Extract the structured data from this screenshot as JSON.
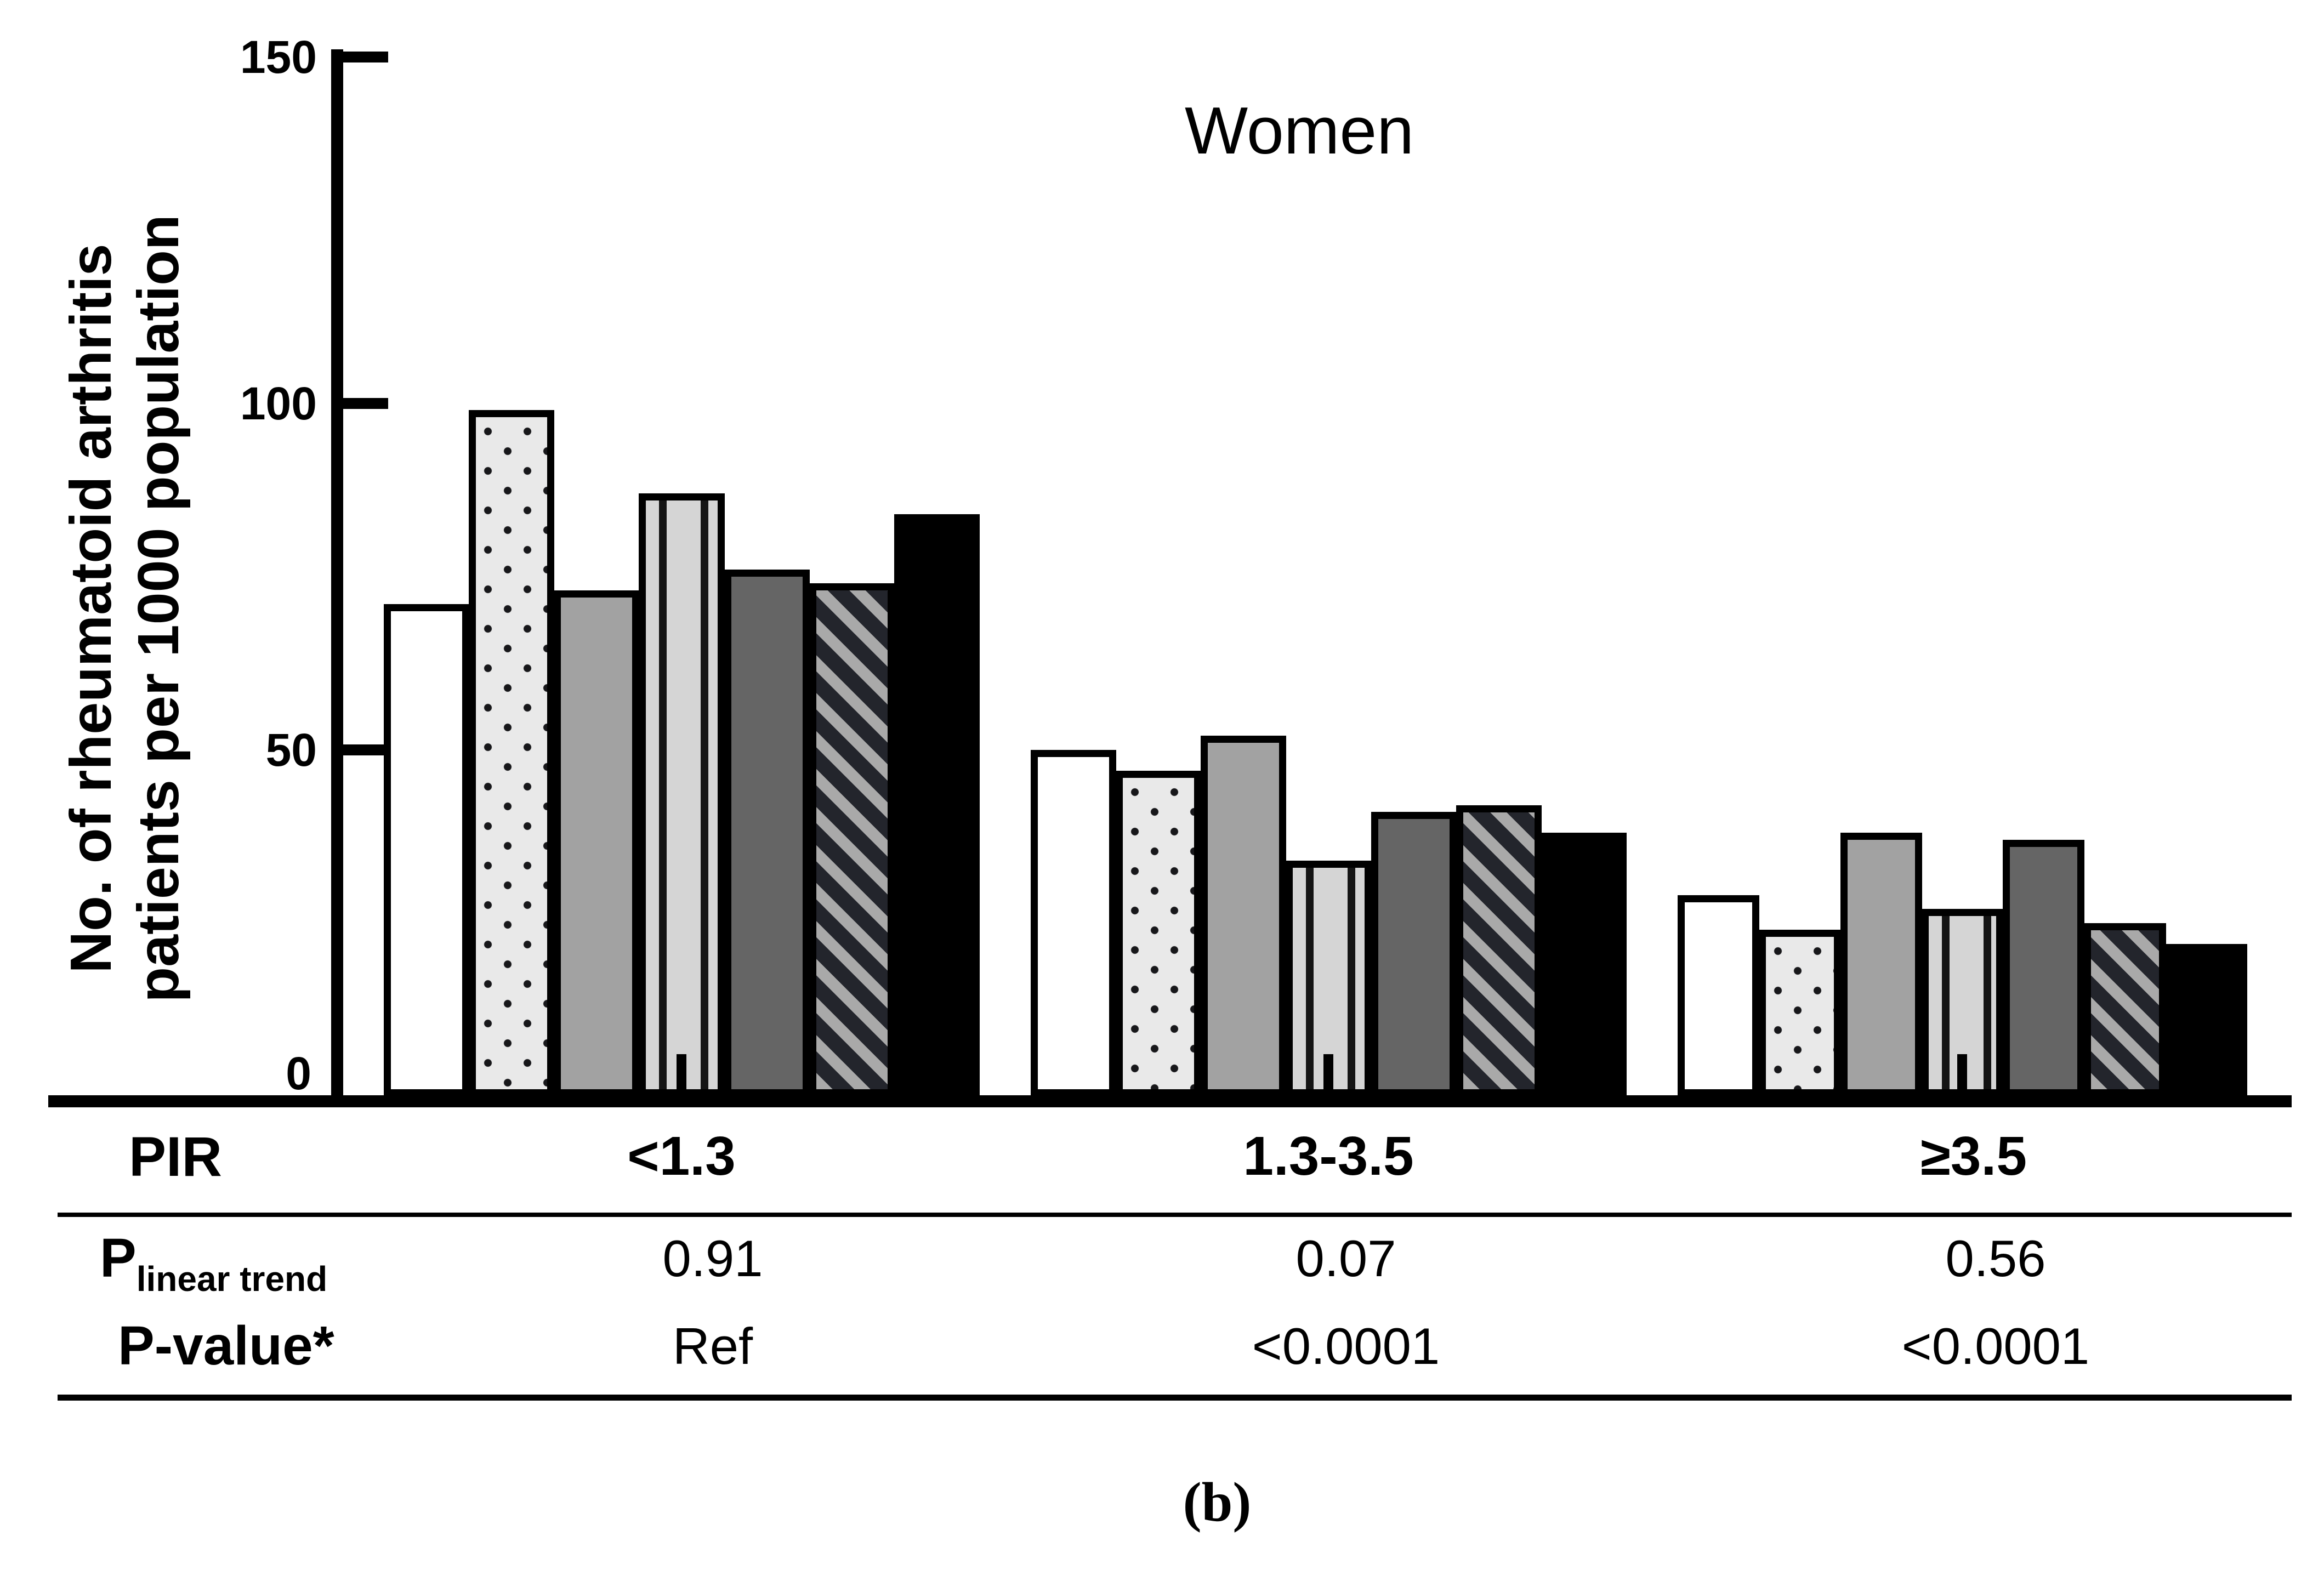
{
  "figure": {
    "title": "Women",
    "panel_label": "(b)"
  },
  "y_axis": {
    "label": "No. of rheumatoid arthritis\npatients per 1000 population",
    "tick_labels": [
      "150",
      "100",
      "50",
      "0"
    ]
  },
  "pir_table": {
    "row_pir_label": "PIR",
    "row_ptrend_label_main": "P",
    "row_ptrend_label_sub": "linear trend",
    "row_pvalue_label": "P-value*",
    "categories": [
      "<1.3",
      "1.3-3.5",
      "≥3.5"
    ],
    "p_linear_trend": [
      "0.91",
      "0.07",
      "0.56"
    ],
    "p_values": [
      "Ref",
      "<0.0001",
      "<0.0001"
    ]
  },
  "chart_data": {
    "type": "bar",
    "title": "Women",
    "xlabel": "PIR",
    "ylabel": "No. of rheumatoid arthritis patients per 1000 population",
    "ylim": [
      0,
      150
    ],
    "yticks": [
      0,
      50,
      100,
      150
    ],
    "grid": false,
    "legend_position": "none",
    "categories": [
      "<1.3",
      "1.3-3.5",
      "≥3.5"
    ],
    "series": [
      {
        "name": "white",
        "pattern": "white",
        "values": [
          70,
          49,
          28
        ]
      },
      {
        "name": "dotted",
        "pattern": "dotted",
        "values": [
          98,
          46,
          23
        ]
      },
      {
        "name": "light-gray",
        "pattern": "light-gray",
        "values": [
          72,
          51,
          37
        ]
      },
      {
        "name": "vertical-stripes",
        "pattern": "vstripe",
        "values": [
          86,
          33,
          26
        ]
      },
      {
        "name": "dark-gray",
        "pattern": "dark-gray",
        "values": [
          75,
          40,
          36
        ]
      },
      {
        "name": "diagonal-stripes",
        "pattern": "hatch",
        "values": [
          73,
          41,
          24
        ]
      },
      {
        "name": "black",
        "pattern": "black",
        "values": [
          83,
          37,
          21
        ]
      }
    ],
    "annotations": {
      "p_linear_trend": [
        "0.91",
        "0.07",
        "0.56"
      ],
      "p_value_vs_ref": [
        "Ref",
        "<0.0001",
        "<0.0001"
      ]
    }
  }
}
